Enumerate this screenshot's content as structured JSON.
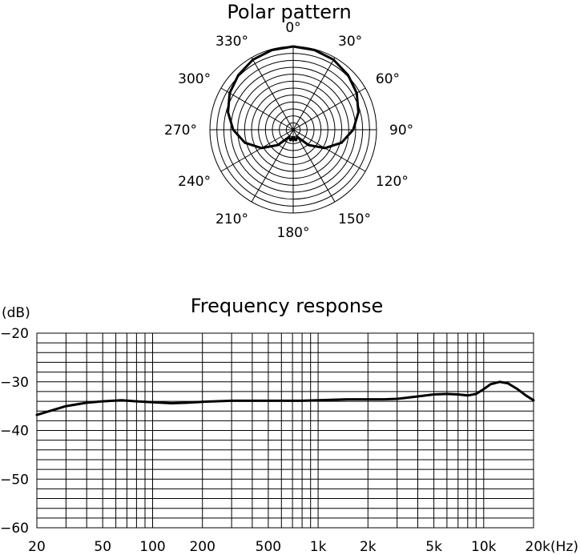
{
  "chart_data": [
    {
      "type": "polar",
      "title": "Polar pattern",
      "angle_labels": [
        "0°",
        "30°",
        "60°",
        "90°",
        "120°",
        "150°",
        "180°",
        "210°",
        "240°",
        "270°",
        "300°",
        "330°"
      ],
      "angles_deg": [
        0,
        30,
        60,
        90,
        120,
        150,
        180,
        210,
        240,
        270,
        300,
        330
      ],
      "rings": 12,
      "series": [
        {
          "angles_deg": [
            0,
            15,
            30,
            45,
            60,
            75,
            90,
            105,
            120,
            135,
            150,
            165,
            172,
            180,
            188,
            195,
            210,
            225,
            240,
            255,
            270,
            285,
            300,
            315,
            330,
            345,
            360
          ],
          "radius": [
            1.0,
            0.99,
            0.97,
            0.93,
            0.88,
            0.81,
            0.72,
            0.6,
            0.44,
            0.26,
            0.1,
            0.13,
            0.1,
            0.13,
            0.1,
            0.13,
            0.1,
            0.26,
            0.44,
            0.6,
            0.72,
            0.81,
            0.88,
            0.93,
            0.97,
            0.99,
            1.0
          ]
        }
      ]
    },
    {
      "type": "line",
      "title": "Frequency response",
      "ylabel": "(dB)",
      "xlabel": "(Hz)",
      "xscale": "log",
      "xlim": [
        20,
        20000
      ],
      "ylim": [
        -60,
        -20
      ],
      "x_ticks": [
        20,
        50,
        100,
        200,
        500,
        1000,
        2000,
        5000,
        10000,
        20000
      ],
      "x_tick_labels": [
        "20",
        "50",
        "100",
        "200",
        "500",
        "1k",
        "2k",
        "5k",
        "10k",
        "20k(Hz)"
      ],
      "y_ticks": [
        -20,
        -30,
        -40,
        -50,
        -60
      ],
      "y_tick_labels": [
        "−20",
        "−30",
        "−40",
        "−50",
        "−60"
      ],
      "grid": true,
      "series": [
        {
          "x": [
            20,
            30,
            40,
            50,
            65,
            80,
            100,
            130,
            160,
            200,
            300,
            500,
            800,
            1000,
            1500,
            2000,
            2500,
            3000,
            4000,
            5000,
            6000,
            7000,
            8000,
            9000,
            10000,
            11000,
            12500,
            14000,
            16000,
            18000,
            20000
          ],
          "y": [
            -36.8,
            -35.0,
            -34.3,
            -34.0,
            -33.8,
            -34.0,
            -34.2,
            -34.4,
            -34.3,
            -34.1,
            -33.9,
            -33.9,
            -33.9,
            -33.8,
            -33.6,
            -33.6,
            -33.6,
            -33.5,
            -33.0,
            -32.6,
            -32.5,
            -32.6,
            -32.8,
            -32.5,
            -31.5,
            -30.5,
            -30.0,
            -30.3,
            -31.5,
            -32.8,
            -33.8
          ]
        }
      ]
    }
  ]
}
